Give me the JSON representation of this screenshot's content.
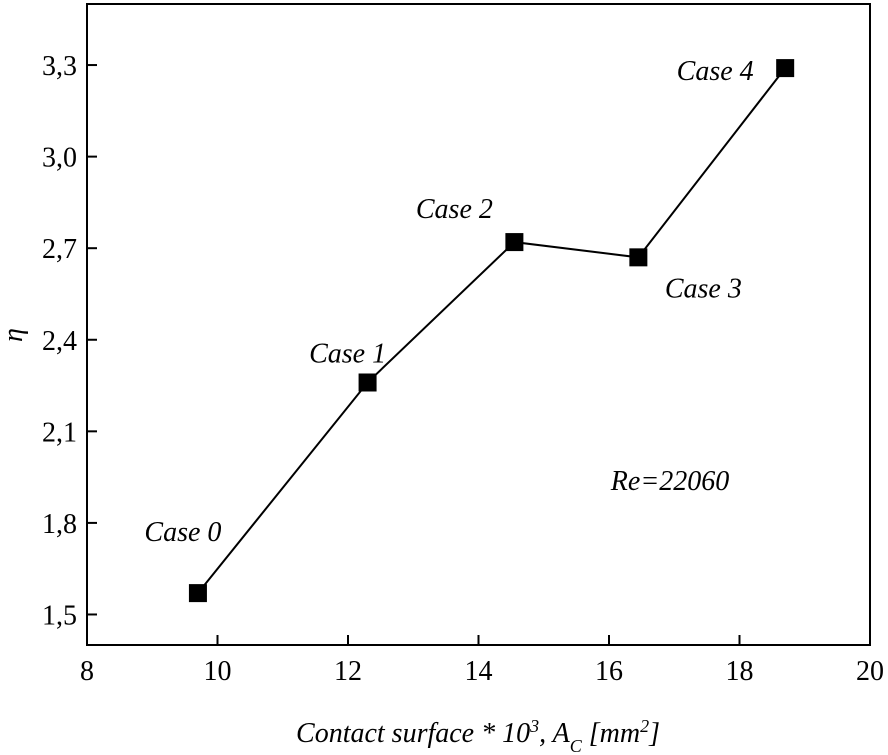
{
  "chart_data": {
    "type": "line",
    "markers": "square",
    "x": [
      9.7,
      12.3,
      14.55,
      16.45,
      18.7
    ],
    "series": [
      {
        "values": [
          1.57,
          2.26,
          2.72,
          2.67,
          3.29
        ]
      }
    ],
    "point_labels": [
      "Case 0",
      "Case 1",
      "Case 2",
      "Case 3",
      "Case 4"
    ],
    "xlim": [
      8,
      20
    ],
    "ylim": [
      1.4,
      3.5
    ],
    "xticks": [
      8,
      10,
      12,
      14,
      16,
      18,
      20
    ],
    "yticks": [
      1.5,
      1.8,
      2.1,
      2.4,
      2.7,
      3.0,
      3.3
    ],
    "xtick_labels": [
      "8",
      "10",
      "12",
      "14",
      "16",
      "18",
      "20"
    ],
    "ytick_labels": [
      "1,5",
      "1,8",
      "2,1",
      "2,4",
      "2,7",
      "3,0",
      "3,3"
    ],
    "xlabel": {
      "main": "Contact surface * 10",
      "exp": "3",
      "mid": ", A",
      "sub": "C",
      "unit_open": " [mm",
      "unit_exp": "2",
      "unit_close": "]"
    },
    "ylabel": "η",
    "annotation": "Re=22060",
    "grid": false,
    "line_color": "#000000",
    "marker_color": "#000000"
  }
}
